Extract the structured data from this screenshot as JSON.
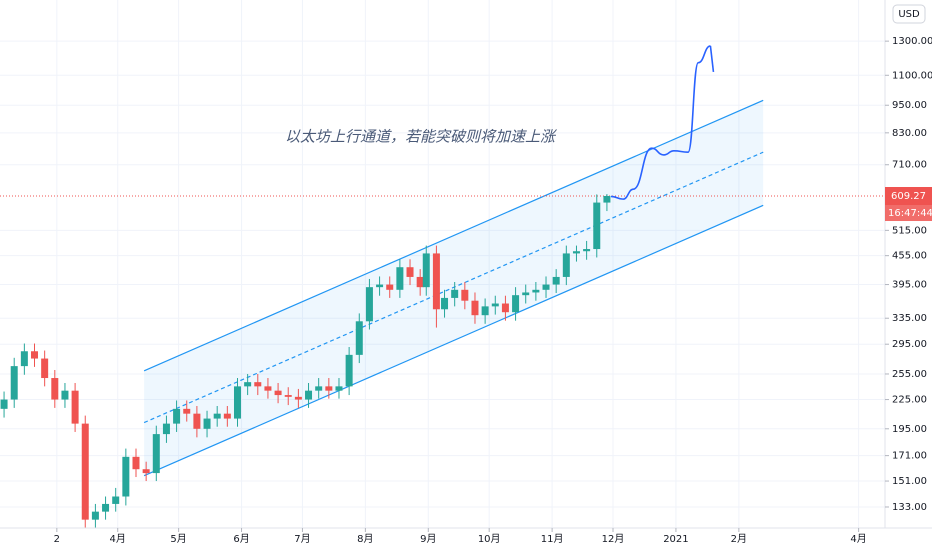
{
  "chart_data": {
    "type": "candlestick",
    "annotation": "以太坊上行通道，若能突破则将加速上涨",
    "currency": "USD",
    "log": true,
    "grid": true,
    "up_color": "#26a69a",
    "down_color": "#ef5350",
    "channel_color": "#2196f3",
    "xlim": [
      33,
      469
    ],
    "ylim": [
      120,
      1590
    ],
    "xticks": [
      {
        "value": 61,
        "label": "2"
      },
      {
        "value": 91,
        "label": "4月"
      },
      {
        "value": 121,
        "label": "5月"
      },
      {
        "value": 152,
        "label": "6月"
      },
      {
        "value": 182,
        "label": "7月"
      },
      {
        "value": 213,
        "label": "8月"
      },
      {
        "value": 244,
        "label": "9月"
      },
      {
        "value": 274,
        "label": "10月"
      },
      {
        "value": 305,
        "label": "11月"
      },
      {
        "value": 335,
        "label": "12月"
      },
      {
        "value": 366,
        "label": "2021"
      },
      {
        "value": 397,
        "label": "2月"
      },
      {
        "value": 456,
        "label": "4月"
      }
    ],
    "yticks": [
      {
        "value": 1300,
        "label": "1300.00"
      },
      {
        "value": 1100,
        "label": "1100.00"
      },
      {
        "value": 950,
        "label": "950.00"
      },
      {
        "value": 830,
        "label": "830.00"
      },
      {
        "value": 710,
        "label": "710.00"
      },
      {
        "value": 515,
        "label": "515.00"
      },
      {
        "value": 455,
        "label": "455.00"
      },
      {
        "value": 395,
        "label": "395.00"
      },
      {
        "value": 335,
        "label": "335.00"
      },
      {
        "value": 295,
        "label": "295.00"
      },
      {
        "value": 255,
        "label": "255.00"
      },
      {
        "value": 225,
        "label": "225.00"
      },
      {
        "value": 195,
        "label": "195.00"
      },
      {
        "value": 171,
        "label": "171.00"
      },
      {
        "value": 151,
        "label": "151.00"
      },
      {
        "value": 133,
        "label": "133.00"
      }
    ],
    "last_price": 609.27,
    "countdown": "16:47:44",
    "x": [
      35,
      40,
      45,
      50,
      55,
      60,
      65,
      70,
      75,
      80,
      85,
      90,
      95,
      100,
      105,
      110,
      115,
      120,
      125,
      130,
      135,
      140,
      145,
      150,
      155,
      160,
      165,
      170,
      175,
      180,
      185,
      190,
      195,
      200,
      205,
      210,
      215,
      220,
      225,
      230,
      235,
      240,
      243,
      248,
      252,
      257,
      262,
      267,
      272,
      277,
      282,
      287,
      292,
      297,
      302,
      307,
      312,
      317,
      322,
      327,
      332
    ],
    "open": [
      215,
      225,
      265,
      285,
      275,
      250,
      225,
      235,
      200,
      125,
      130,
      135,
      140,
      170,
      160,
      157,
      190,
      200,
      215,
      210,
      195,
      205,
      210,
      205,
      240,
      245,
      240,
      235,
      230,
      228,
      225,
      235,
      240,
      235,
      240,
      280,
      330,
      390,
      395,
      385,
      430,
      410,
      390,
      460,
      350,
      370,
      385,
      365,
      340,
      355,
      360,
      345,
      375,
      380,
      385,
      395,
      410,
      460,
      465,
      470,
      590
    ],
    "high": [
      234,
      276,
      296,
      296,
      286,
      260,
      244,
      244,
      208,
      135,
      140,
      146,
      177,
      177,
      166,
      198,
      208,
      224,
      224,
      218,
      213,
      218,
      218,
      250,
      255,
      255,
      250,
      244,
      239,
      237,
      244,
      250,
      250,
      250,
      291,
      343,
      406,
      411,
      411,
      447,
      447,
      426,
      478,
      478,
      385,
      400,
      400,
      380,
      369,
      374,
      374,
      390,
      395,
      400,
      411,
      426,
      478,
      478,
      489,
      614,
      615
    ],
    "low": [
      206,
      216,
      254,
      264,
      240,
      216,
      216,
      192,
      120,
      120,
      125,
      130,
      134,
      154,
      151,
      151,
      182,
      192,
      202,
      187,
      187,
      197,
      197,
      197,
      230,
      230,
      226,
      221,
      219,
      216,
      216,
      226,
      226,
      226,
      230,
      269,
      317,
      374,
      370,
      370,
      394,
      374,
      374,
      320,
      336,
      355,
      350,
      326,
      326,
      341,
      331,
      331,
      360,
      365,
      370,
      379,
      394,
      442,
      446,
      451,
      566
    ],
    "close": [
      225,
      265,
      285,
      275,
      250,
      225,
      235,
      200,
      125,
      130,
      135,
      140,
      170,
      160,
      157,
      190,
      200,
      215,
      210,
      195,
      205,
      210,
      205,
      240,
      245,
      240,
      235,
      230,
      228,
      225,
      235,
      240,
      235,
      240,
      280,
      330,
      390,
      395,
      385,
      430,
      410,
      390,
      460,
      350,
      370,
      385,
      365,
      340,
      355,
      360,
      345,
      375,
      380,
      385,
      395,
      410,
      460,
      465,
      470,
      590,
      609.27
    ],
    "channel": {
      "upper": {
        "x": [
          104,
          409
        ],
        "y": [
          259,
          973
        ]
      },
      "middle": {
        "x": [
          104,
          409
        ],
        "y": [
          201,
          755
        ]
      },
      "lower": {
        "x": [
          104,
          409
        ],
        "y": [
          155,
          582
        ]
      }
    },
    "projection": {
      "x": [
        334,
        340,
        345,
        354,
        360,
        365,
        372,
        377,
        383
      ],
      "y": [
        608,
        600,
        630,
        770,
        745,
        760,
        755,
        1170,
        1270
      ]
    }
  }
}
